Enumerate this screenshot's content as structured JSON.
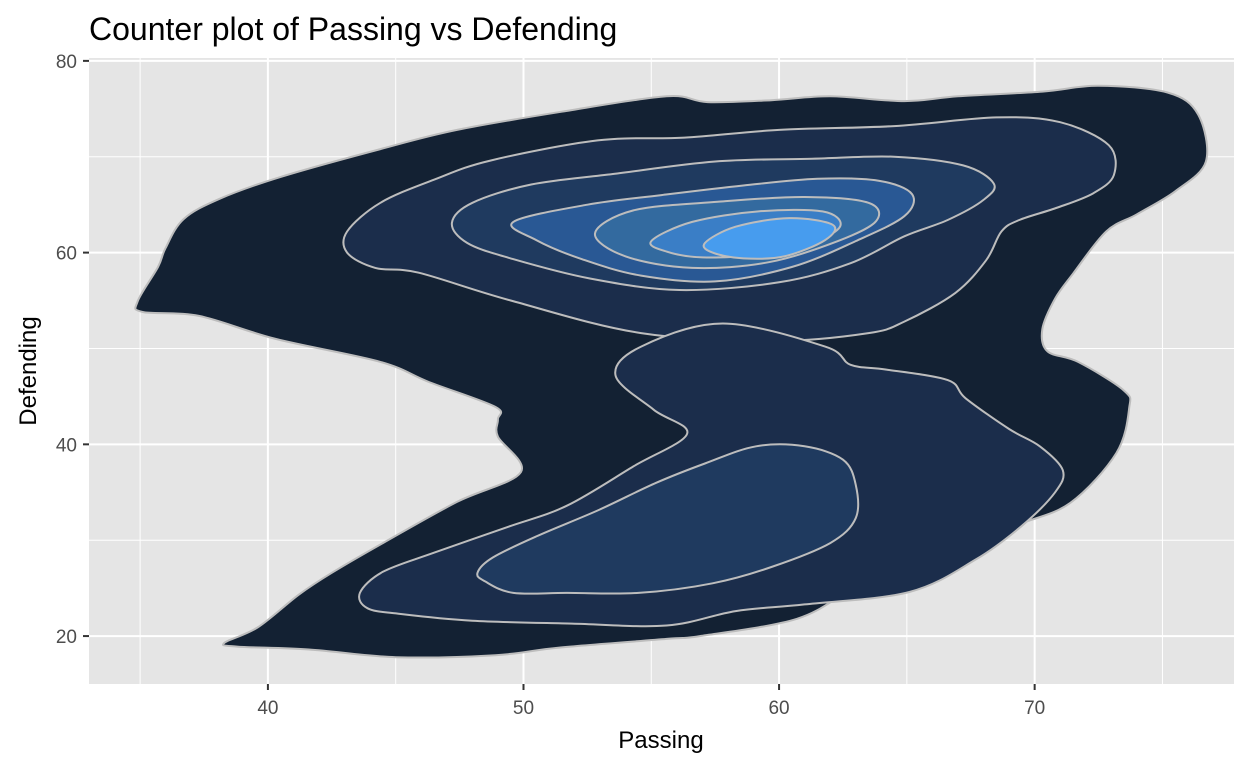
{
  "chart_data": {
    "type": "contour",
    "title": "Counter plot of Passing vs Defending",
    "xlabel": "Passing",
    "ylabel": "Defending",
    "xlim": [
      33.0,
      77.8
    ],
    "ylim": [
      15.0,
      80.3
    ],
    "x_ticks": [
      40,
      50,
      60,
      70
    ],
    "y_ticks": [
      20,
      40,
      60,
      80
    ],
    "x_minor_ticks": [
      35,
      45,
      55,
      65,
      75
    ],
    "y_minor_ticks": [
      30,
      50,
      70
    ],
    "grid": true,
    "legend": "none",
    "panel_background": "#e5e5e5",
    "grid_color": "#ffffff",
    "contour_line_color": "#bdbdbd",
    "levels": [
      {
        "level": 1,
        "fill": "#132133",
        "polygons": [
          [
            [
              38.3,
              19.3
            ],
            [
              39.6,
              20.9
            ],
            [
              41.2,
              24.3
            ],
            [
              42.5,
              26.6
            ],
            [
              44.5,
              29.7
            ],
            [
              47.4,
              34.0
            ],
            [
              49.9,
              37.1
            ],
            [
              49.0,
              40.8
            ],
            [
              49.0,
              42.6
            ],
            [
              48.9,
              43.9
            ],
            [
              46.3,
              46.5
            ],
            [
              44.4,
              48.6
            ],
            [
              40.3,
              51.0
            ],
            [
              37.3,
              53.4
            ],
            [
              35.1,
              53.8
            ],
            [
              34.9,
              54.9
            ],
            [
              35.7,
              58.5
            ],
            [
              36.0,
              60.5
            ],
            [
              36.7,
              63.5
            ],
            [
              38.1,
              65.6
            ],
            [
              40.5,
              67.9
            ],
            [
              44.4,
              70.8
            ],
            [
              47.4,
              72.8
            ],
            [
              51.5,
              74.7
            ],
            [
              55.6,
              76.3
            ],
            [
              57.2,
              75.7
            ],
            [
              59.7,
              75.9
            ],
            [
              62.0,
              76.3
            ],
            [
              64.9,
              75.8
            ],
            [
              67.0,
              76.3
            ],
            [
              70.3,
              76.8
            ],
            [
              72.5,
              77.4
            ],
            [
              75.2,
              76.7
            ],
            [
              76.4,
              74.4
            ],
            [
              76.7,
              69.5
            ],
            [
              75.5,
              66.4
            ],
            [
              74.0,
              64.0
            ],
            [
              72.8,
              62.2
            ],
            [
              71.5,
              57.8
            ],
            [
              70.8,
              55.2
            ],
            [
              70.3,
              52.0
            ],
            [
              70.5,
              49.7
            ],
            [
              71.7,
              48.6
            ],
            [
              73.5,
              45.6
            ],
            [
              73.7,
              43.8
            ],
            [
              73.2,
              39.1
            ],
            [
              71.4,
              33.9
            ],
            [
              69.3,
              31.6
            ],
            [
              66.3,
              28.7
            ],
            [
              63.1,
              25.2
            ],
            [
              60.7,
              21.8
            ],
            [
              56.9,
              20.0
            ],
            [
              55.6,
              19.7
            ],
            [
              51.4,
              18.8
            ],
            [
              48.9,
              18.0
            ],
            [
              45.0,
              17.8
            ],
            [
              41.6,
              18.6
            ],
            [
              38.8,
              18.9
            ],
            [
              38.3,
              19.3
            ]
          ]
        ]
      },
      {
        "level": 2,
        "fill": "#1b2d4b",
        "polygons": [
          [
            [
              43.1,
              62.2
            ],
            [
              44.4,
              65.2
            ],
            [
              46.5,
              67.6
            ],
            [
              48.7,
              69.6
            ],
            [
              52.9,
              71.7
            ],
            [
              56.3,
              72.0
            ],
            [
              60.0,
              72.8
            ],
            [
              64.5,
              73.2
            ],
            [
              68.5,
              74.1
            ],
            [
              71.0,
              73.6
            ],
            [
              72.9,
              71.2
            ],
            [
              73.1,
              68.1
            ],
            [
              72.3,
              66.2
            ],
            [
              70.9,
              64.7
            ],
            [
              69.4,
              63.4
            ],
            [
              68.7,
              62.2
            ],
            [
              68.1,
              59.2
            ],
            [
              66.9,
              55.8
            ],
            [
              64.9,
              52.8
            ],
            [
              63.5,
              51.6
            ],
            [
              59.9,
              50.8
            ],
            [
              54.6,
              51.6
            ],
            [
              49.5,
              55.0
            ],
            [
              45.9,
              57.9
            ],
            [
              44.2,
              58.4
            ],
            [
              43.1,
              60.0
            ],
            [
              43.1,
              62.2
            ]
          ],
          [
            [
              44.5,
              26.7
            ],
            [
              43.6,
              24.5
            ],
            [
              43.9,
              22.9
            ],
            [
              45.2,
              22.3
            ],
            [
              48.0,
              21.6
            ],
            [
              51.9,
              21.3
            ],
            [
              55.6,
              21.1
            ],
            [
              58.3,
              22.6
            ],
            [
              61.0,
              23.3
            ],
            [
              65.1,
              24.6
            ],
            [
              67.7,
              28.0
            ],
            [
              69.5,
              31.5
            ],
            [
              70.8,
              35.0
            ],
            [
              71.1,
              37.3
            ],
            [
              70.2,
              39.8
            ],
            [
              69.0,
              41.6
            ],
            [
              67.3,
              44.8
            ],
            [
              66.6,
              46.7
            ],
            [
              64.2,
              47.8
            ],
            [
              62.8,
              48.3
            ],
            [
              61.8,
              50.2
            ],
            [
              57.8,
              52.6
            ],
            [
              54.6,
              50.2
            ],
            [
              53.6,
              47.2
            ],
            [
              55.1,
              43.6
            ],
            [
              56.4,
              41.1
            ],
            [
              54.3,
              37.7
            ],
            [
              51.7,
              33.6
            ],
            [
              49.4,
              31.4
            ],
            [
              46.5,
              28.7
            ],
            [
              44.5,
              26.7
            ]
          ]
        ]
      },
      {
        "level": 3,
        "fill": "#1f3a5f",
        "polygons": [
          [
            [
              47.2,
              63.1
            ],
            [
              48.0,
              65.2
            ],
            [
              50.3,
              67.1
            ],
            [
              53.5,
              68.2
            ],
            [
              57.5,
              69.5
            ],
            [
              61.3,
              69.8
            ],
            [
              64.5,
              70.0
            ],
            [
              67.2,
              69.1
            ],
            [
              68.4,
              67.2
            ],
            [
              68.0,
              65.5
            ],
            [
              66.6,
              63.4
            ],
            [
              64.9,
              61.7
            ],
            [
              62.8,
              58.9
            ],
            [
              60.0,
              56.9
            ],
            [
              56.1,
              56.1
            ],
            [
              52.6,
              57.3
            ],
            [
              49.5,
              59.4
            ],
            [
              47.8,
              61.0
            ],
            [
              47.2,
              63.1
            ]
          ],
          [
            [
              48.2,
              26.6
            ],
            [
              48.5,
              25.7
            ],
            [
              49.6,
              24.5
            ],
            [
              51.7,
              24.5
            ],
            [
              54.5,
              24.5
            ],
            [
              57.4,
              25.5
            ],
            [
              59.7,
              27.2
            ],
            [
              62.0,
              29.7
            ],
            [
              63.0,
              32.3
            ],
            [
              63.0,
              35.8
            ],
            [
              62.5,
              38.4
            ],
            [
              61.0,
              39.8
            ],
            [
              59.1,
              39.8
            ],
            [
              57.1,
              38.0
            ],
            [
              55.2,
              36.0
            ],
            [
              52.9,
              33.1
            ],
            [
              50.5,
              30.4
            ],
            [
              48.8,
              28.2
            ],
            [
              48.2,
              26.6
            ]
          ]
        ]
      },
      {
        "level": 4,
        "fill": "#295894",
        "polygons": [
          [
            [
              49.6,
              63.2
            ],
            [
              52.5,
              65.0
            ],
            [
              55.4,
              66.0
            ],
            [
              58.6,
              67.0
            ],
            [
              61.5,
              67.7
            ],
            [
              63.9,
              67.5
            ],
            [
              65.2,
              66.1
            ],
            [
              64.9,
              63.8
            ],
            [
              63.0,
              61.2
            ],
            [
              60.5,
              58.5
            ],
            [
              57.5,
              57.0
            ],
            [
              54.6,
              57.6
            ],
            [
              52.3,
              59.3
            ],
            [
              50.5,
              61.3
            ],
            [
              49.6,
              63.2
            ]
          ]
        ]
      },
      {
        "level": 5,
        "fill": "#336a9f",
        "polygons": [
          [
            [
              52.8,
              62.0
            ],
            [
              54.3,
              64.4
            ],
            [
              57.6,
              65.3
            ],
            [
              61.0,
              65.8
            ],
            [
              63.5,
              65.2
            ],
            [
              63.8,
              63.3
            ],
            [
              62.3,
              61.2
            ],
            [
              59.6,
              59.0
            ],
            [
              56.6,
              58.4
            ],
            [
              54.0,
              59.6
            ],
            [
              52.8,
              62.0
            ]
          ]
        ]
      },
      {
        "level": 6,
        "fill": "#3a7ec6",
        "polygons": [
          [
            [
              55.0,
              61.2
            ],
            [
              56.6,
              63.2
            ],
            [
              59.2,
              64.3
            ],
            [
              61.7,
              64.3
            ],
            [
              62.4,
              62.8
            ],
            [
              61.3,
              61.0
            ],
            [
              59.3,
              59.8
            ],
            [
              57.0,
              59.5
            ],
            [
              55.6,
              60.1
            ],
            [
              55.0,
              61.2
            ]
          ]
        ]
      },
      {
        "level": 7,
        "fill": "#479cee",
        "polygons": [
          [
            [
              57.1,
              61.0
            ],
            [
              58.3,
              62.7
            ],
            [
              60.4,
              63.6
            ],
            [
              62.1,
              62.9
            ],
            [
              61.8,
              61.3
            ],
            [
              60.2,
              59.6
            ],
            [
              58.6,
              59.4
            ],
            [
              57.4,
              60.0
            ],
            [
              57.1,
              61.0
            ]
          ]
        ]
      }
    ]
  }
}
